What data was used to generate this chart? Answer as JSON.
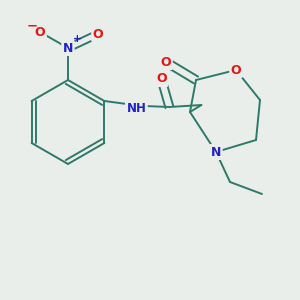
{
  "background_color": "#eaeeea",
  "bond_color": "#2d7a6a",
  "atom_colors": {
    "O": "#ee1111",
    "N": "#2222cc",
    "C": "#2d7a6a"
  },
  "lw": 1.4,
  "fs": 8.5
}
